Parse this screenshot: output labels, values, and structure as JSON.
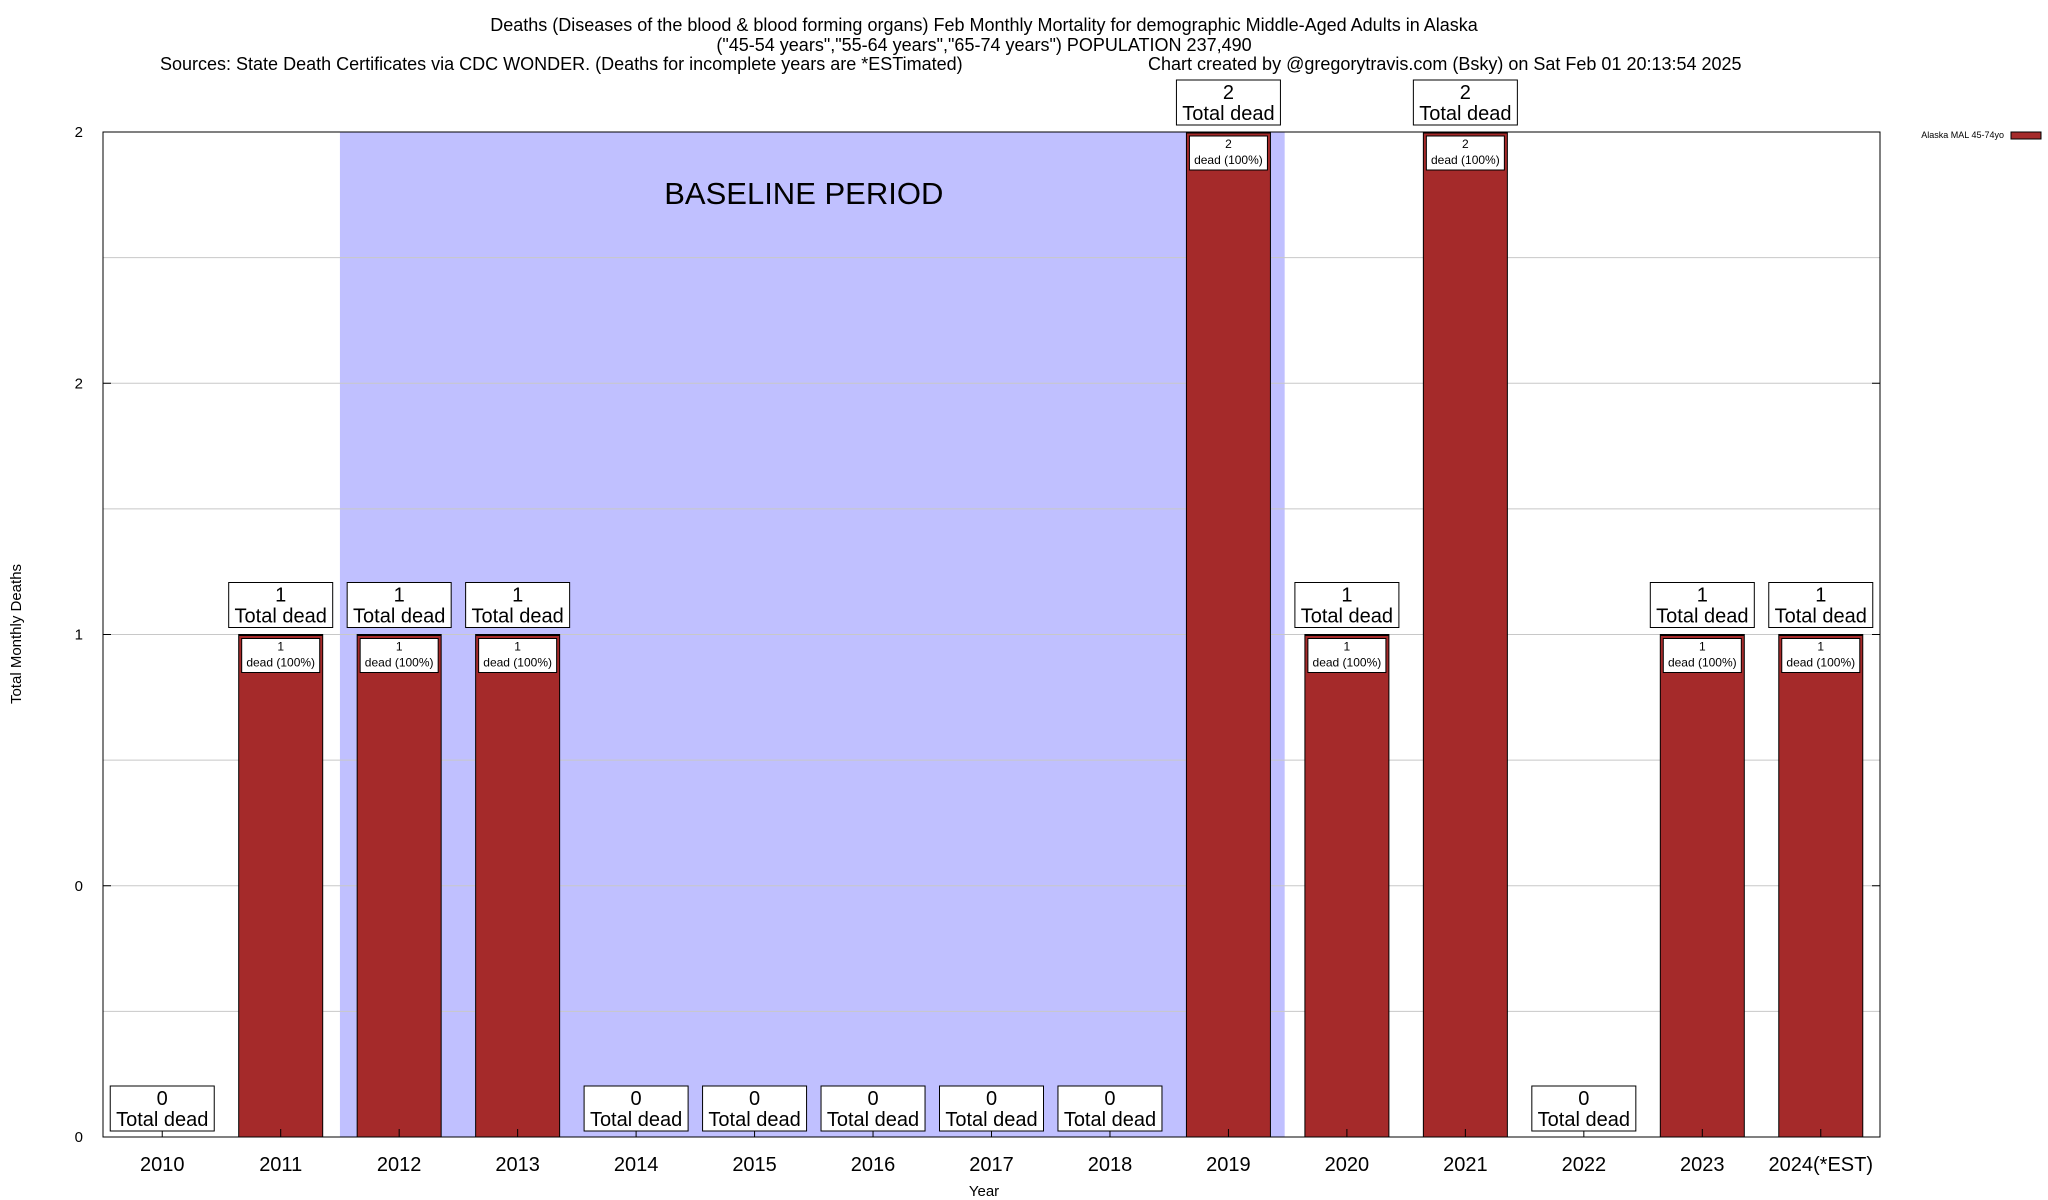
{
  "chart_data": {
    "type": "bar",
    "title_lines": [
      "Deaths (Diseases of the blood & blood forming organs) Feb Monthly Mortality for demographic Middle-Aged Adults in Alaska",
      "(\"45-54 years\",\"55-64 years\",\"65-74 years\") POPULATION 237,490"
    ],
    "sources": "Sources: State Death Certificates via CDC WONDER. (Deaths for incomplete years are *ESTimated)",
    "credit": "Chart created by @gregorytravis.com (Bsky) on Sat Feb 01 20:13:54 2025",
    "xlabel": "Year",
    "ylabel": "Total Monthly Deaths",
    "categories": [
      "2010",
      "2011",
      "2012",
      "2013",
      "2014",
      "2015",
      "2016",
      "2017",
      "2018",
      "2019",
      "2020",
      "2021",
      "2022",
      "2023",
      "2024(*EST)"
    ],
    "series": [
      {
        "name": "Alaska MAL 45-74yo",
        "color": "#a52a2a",
        "values": [
          0,
          1,
          1,
          1,
          0,
          0,
          0,
          0,
          0,
          2,
          1,
          2,
          0,
          1,
          1
        ]
      }
    ],
    "ylim": [
      0,
      2
    ],
    "yticks": [
      {
        "value": 0,
        "label": "0"
      },
      {
        "value": 0.5,
        "label": "0"
      },
      {
        "value": 1,
        "label": "1"
      },
      {
        "value": 1.5,
        "label": "2"
      },
      {
        "value": 2,
        "label": "2"
      }
    ],
    "baseline_period": {
      "label": "BASELINE PERIOD",
      "from": "2012",
      "to": "2019",
      "color": "#c0c0ff"
    },
    "total_label_suffix": "Total dead",
    "bar_label_suffix": "dead",
    "bar_label_percent": "(100%)",
    "grid": true,
    "legend_position": "top-right"
  }
}
